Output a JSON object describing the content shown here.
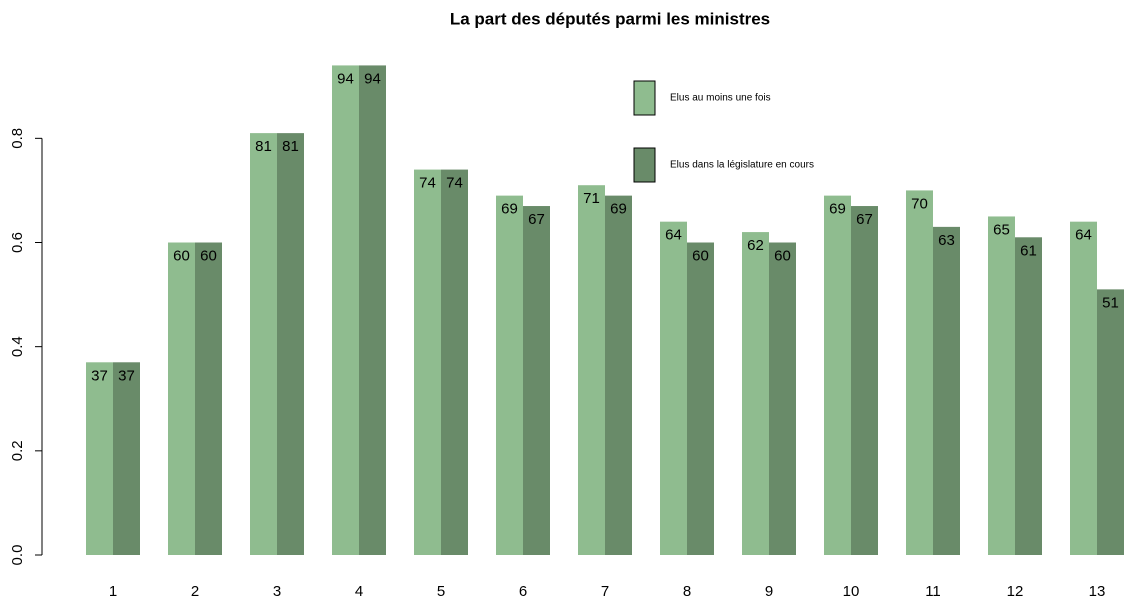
{
  "chart_data": {
    "type": "bar",
    "title": "La part des députés parmi les ministres",
    "categories": [
      "1",
      "2",
      "3",
      "4",
      "5",
      "6",
      "7",
      "8",
      "9",
      "10",
      "11",
      "12",
      "13"
    ],
    "series": [
      {
        "name": "Elus au moins une fois",
        "color": "#8fbc8f",
        "values": [
          0.37,
          0.6,
          0.81,
          0.94,
          0.74,
          0.69,
          0.71,
          0.64,
          0.62,
          0.69,
          0.7,
          0.65,
          0.64
        ],
        "value_labels": [
          "37",
          "60",
          "81",
          "94",
          "74",
          "69",
          "71",
          "64",
          "62",
          "69",
          "70",
          "65",
          "64"
        ]
      },
      {
        "name": "Elus dans la législature en cours",
        "color": "#698b69",
        "values": [
          0.37,
          0.6,
          0.81,
          0.94,
          0.74,
          0.67,
          0.69,
          0.6,
          0.6,
          0.67,
          0.63,
          0.61,
          0.51
        ],
        "value_labels": [
          "37",
          "60",
          "81",
          "94",
          "74",
          "67",
          "69",
          "60",
          "60",
          "67",
          "63",
          "61",
          "51"
        ]
      }
    ],
    "ylim": [
      0,
      0.96
    ],
    "yticks": [
      {
        "value": 0,
        "label": "0.0"
      },
      0.2,
      0.4,
      0.6,
      0.8
    ]
  }
}
